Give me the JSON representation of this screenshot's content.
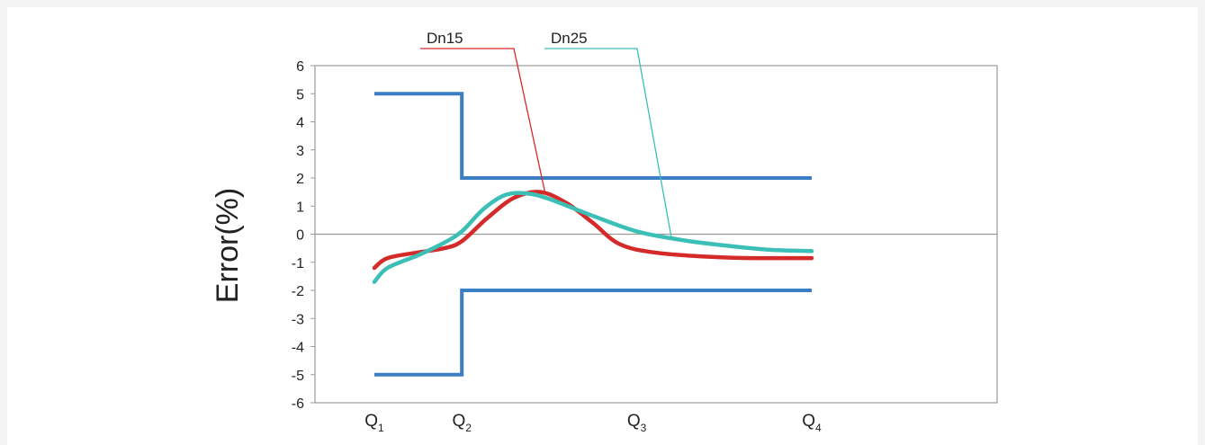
{
  "chart_data": {
    "type": "line",
    "ylabel": "Error(%)",
    "ylim": [
      -6,
      6
    ],
    "yticks": [
      "6",
      "5",
      "4",
      "3",
      "2",
      "1",
      "0",
      "-1",
      "-2",
      "-3",
      "-4",
      "-5",
      "-6"
    ],
    "x_categories": [
      {
        "main": "Q",
        "sub": "1",
        "x": 0
      },
      {
        "main": "Q",
        "sub": "2",
        "x": 1
      },
      {
        "main": "Q",
        "sub": "3",
        "x": 3
      },
      {
        "main": "Q",
        "sub": "4",
        "x": 5
      }
    ],
    "xlim": [
      -0.4,
      5.5
    ],
    "limits": {
      "color": "#3a7fc4",
      "upper": [
        [
          0,
          5
        ],
        [
          1,
          5
        ],
        [
          1,
          2
        ],
        [
          5,
          2
        ]
      ],
      "lower": [
        [
          0,
          -5
        ],
        [
          1,
          -5
        ],
        [
          1,
          -2
        ],
        [
          5,
          -2
        ]
      ]
    },
    "series": [
      {
        "name": "Dn15",
        "color": "#d42a2a",
        "points": [
          [
            0,
            -1.2
          ],
          [
            0.15,
            -0.85
          ],
          [
            0.5,
            -0.65
          ],
          [
            0.8,
            -0.5
          ],
          [
            1.0,
            -0.25
          ],
          [
            1.3,
            0.6
          ],
          [
            1.6,
            1.3
          ],
          [
            1.9,
            1.5
          ],
          [
            2.2,
            1.1
          ],
          [
            2.5,
            0.4
          ],
          [
            2.8,
            -0.35
          ],
          [
            3.2,
            -0.65
          ],
          [
            3.8,
            -0.8
          ],
          [
            4.3,
            -0.85
          ],
          [
            5.0,
            -0.85
          ]
        ]
      },
      {
        "name": "Dn25",
        "color": "#3bbfb6",
        "points": [
          [
            0,
            -1.7
          ],
          [
            0.15,
            -1.2
          ],
          [
            0.5,
            -0.75
          ],
          [
            0.8,
            -0.3
          ],
          [
            1.0,
            0.1
          ],
          [
            1.25,
            0.9
          ],
          [
            1.5,
            1.4
          ],
          [
            1.75,
            1.45
          ],
          [
            2.0,
            1.25
          ],
          [
            2.5,
            0.65
          ],
          [
            3.0,
            0.1
          ],
          [
            3.5,
            -0.2
          ],
          [
            4.0,
            -0.4
          ],
          [
            4.5,
            -0.55
          ],
          [
            5.0,
            -0.6
          ]
        ]
      }
    ],
    "annotations": [
      {
        "text": "Dn15",
        "target_x": 1.95,
        "target_y": 1.5,
        "color": "#d42a2a"
      },
      {
        "text": "Dn25",
        "target_x": 3.4,
        "target_y": -0.2,
        "color": "#3bbfb6"
      }
    ]
  }
}
